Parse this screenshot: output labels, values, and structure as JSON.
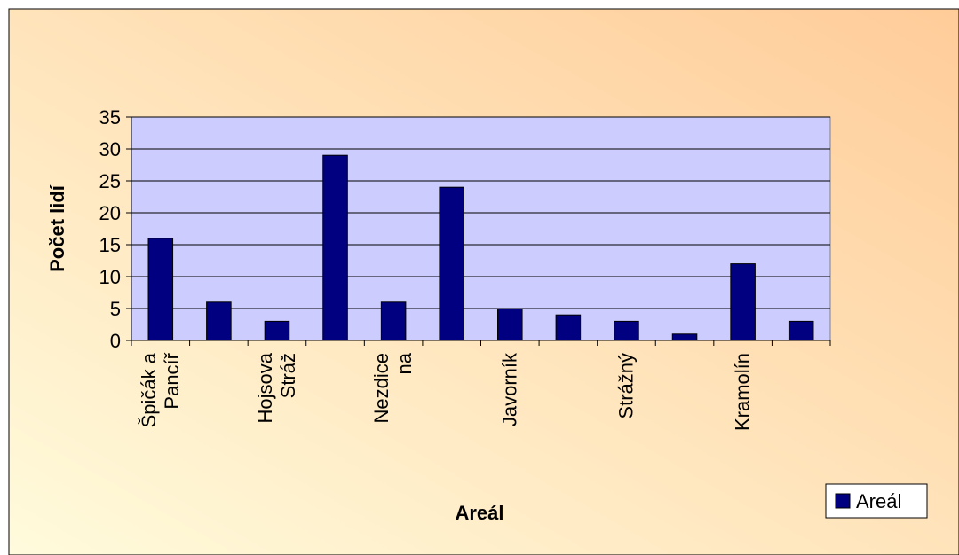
{
  "chart_data": {
    "type": "bar",
    "title": "",
    "xlabel": "Areál",
    "ylabel": "Počet lidí",
    "ylim": [
      0,
      35
    ],
    "yticks": [
      0,
      5,
      10,
      15,
      20,
      25,
      30,
      35
    ],
    "grid": true,
    "legend": {
      "position": "bottom-right",
      "label": "Areál"
    },
    "colors": {
      "bar": "#000080",
      "plot_background": "#ccccff",
      "background_start": "#fffbdc",
      "background_end": "#ffcc99"
    },
    "categories": [
      "Špičák a Pancíř",
      "",
      "Hojsova Stráž",
      "",
      "Nezdice na",
      "",
      "Javorník",
      "",
      "Strážný",
      "",
      "Kramolín",
      ""
    ],
    "category_lines": [
      [
        "Špičák a",
        "Pancíř"
      ],
      [],
      [
        "Hojsova",
        "Stráž"
      ],
      [],
      [
        "Nezdice",
        "na"
      ],
      [],
      [
        "Javorník"
      ],
      [],
      [
        "Strážný"
      ],
      [],
      [
        "Kramolín"
      ],
      []
    ],
    "values": [
      16,
      6,
      3,
      29,
      6,
      24,
      5,
      4,
      3,
      1,
      12,
      3
    ]
  }
}
